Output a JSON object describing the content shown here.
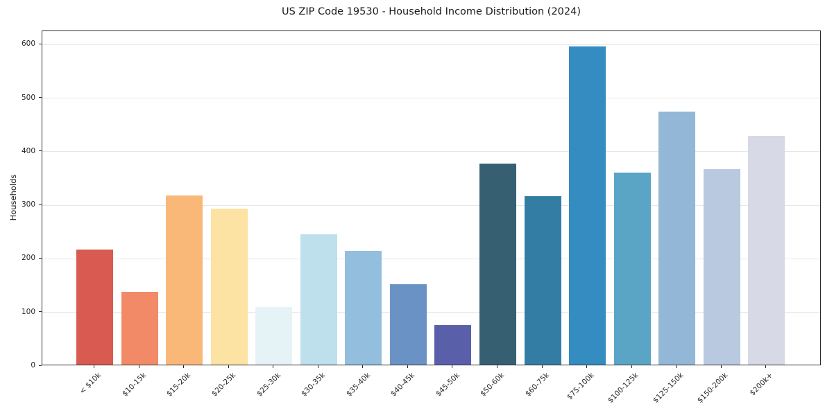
{
  "chart_data": {
    "type": "bar",
    "title": "US ZIP Code 19530 - Household Income Distribution (2024)",
    "xlabel": "",
    "ylabel": "Households",
    "categories": [
      "< $10k",
      "$10-15k",
      "$15-20k",
      "$20-25k",
      "$25-30k",
      "$30-35k",
      "$35-40k",
      "$40-45k",
      "$45-50k",
      "$50-60k",
      "$60-75k",
      "$75-100k",
      "$100-125k",
      "$125-150k",
      "$150-200k",
      "$200k+"
    ],
    "values": [
      215,
      136,
      316,
      291,
      107,
      243,
      212,
      150,
      74,
      375,
      314,
      594,
      358,
      472,
      365,
      427
    ],
    "bar_colors": [
      "#d85a50",
      "#f28a68",
      "#fab878",
      "#fde3a3",
      "#e6f3f6",
      "#bde0ec",
      "#93bedd",
      "#6b92c4",
      "#5a5fa9",
      "#366072",
      "#337da4",
      "#348cc0",
      "#5aa5c6",
      "#92b7d7",
      "#b9c9df",
      "#d7d9e6"
    ],
    "ylim": [
      0,
      625
    ],
    "yticks": [
      0,
      100,
      200,
      300,
      400,
      500,
      600
    ],
    "grid": "horizontal",
    "legend": "none"
  }
}
